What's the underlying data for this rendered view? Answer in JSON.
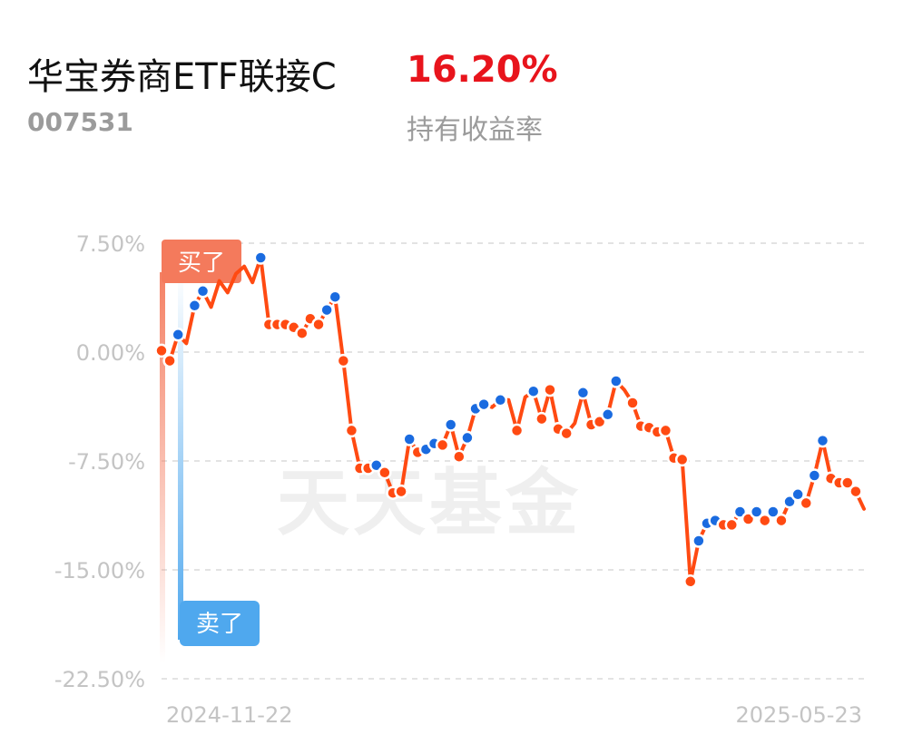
{
  "header": {
    "fund_name": "华宝券商ETF联接C",
    "return_value": "16.20%",
    "fund_code": "007531",
    "return_label": "持有收益率"
  },
  "colors": {
    "line": "#ff4a12",
    "buy_marker": "#ff4a12",
    "sell_marker": "#1a6be0",
    "buy_flag": "#f47a5c",
    "sell_flag": "#4fa8ee",
    "return_text": "#e8141c"
  },
  "watermark": "天天基金",
  "chart_data": {
    "type": "line",
    "title": "",
    "xlabel": "",
    "ylabel": "",
    "ylim": [
      -22.5,
      7.5
    ],
    "y_ticks": [
      "7.50%",
      "0.00%",
      "-7.50%",
      "-15.00%",
      "-22.50%"
    ],
    "y_tick_values": [
      7.5,
      0,
      -7.5,
      -15,
      -22.5
    ],
    "x_tick_labels": [
      "2024-11-22",
      "2025-05-23"
    ],
    "x_range": [
      "2024-11-22",
      "2025-05-23"
    ],
    "grid": true,
    "flags": {
      "buy": "买了",
      "sell": "卖了"
    },
    "series": [
      {
        "values": [
          0.1,
          -0.6,
          1.2,
          0.6,
          3.2,
          4.2,
          3.1,
          4.9,
          4.1,
          5.4,
          5.9,
          4.8,
          6.5,
          1.9,
          1.9,
          1.9,
          1.7,
          1.3,
          2.3,
          1.9,
          2.9,
          3.8,
          -0.6,
          -5.4,
          -8.0,
          -8.0,
          -7.8,
          -8.3,
          -9.7,
          -9.6,
          -6.0,
          -6.9,
          -6.7,
          -6.3,
          -6.4,
          -5.0,
          -7.2,
          -5.9,
          -3.9,
          -3.6,
          -3.8,
          -3.3,
          -3.3,
          -5.4,
          -3.1,
          -2.7,
          -4.6,
          -2.6,
          -5.3,
          -5.6,
          -4.9,
          -2.8,
          -5.0,
          -4.8,
          -4.3,
          -2.0,
          -2.6,
          -3.5,
          -5.1,
          -5.2,
          -5.5,
          -5.4,
          -7.3,
          -7.4,
          -15.8,
          -13.0,
          -11.8,
          -11.6,
          -11.9,
          -11.9,
          -11.0,
          -11.5,
          -11.0,
          -11.6,
          -11.0,
          -11.6,
          -10.3,
          -9.8,
          -10.4,
          -8.5,
          -6.1,
          -8.7,
          -9.0,
          -9.0,
          -9.6,
          -10.8
        ],
        "marker_types": [
          "b",
          "b",
          "s",
          "n",
          "s",
          "s",
          "n",
          "n",
          "n",
          "n",
          "n",
          "n",
          "s",
          "b",
          "b",
          "b",
          "b",
          "b",
          "b",
          "b",
          "s",
          "s",
          "b",
          "b",
          "b",
          "b",
          "s",
          "b",
          "b",
          "b",
          "s",
          "b",
          "s",
          "s",
          "b",
          "s",
          "b",
          "s",
          "s",
          "s",
          "n",
          "s",
          "n",
          "b",
          "n",
          "s",
          "b",
          "b",
          "b",
          "b",
          "n",
          "s",
          "b",
          "b",
          "s",
          "s",
          "n",
          "b",
          "b",
          "b",
          "b",
          "b",
          "b",
          "b",
          "b",
          "s",
          "s",
          "s",
          "b",
          "b",
          "s",
          "b",
          "s",
          "b",
          "s",
          "b",
          "s",
          "s",
          "b",
          "s",
          "s",
          "b",
          "b",
          "b",
          "b",
          "n"
        ]
      }
    ]
  }
}
